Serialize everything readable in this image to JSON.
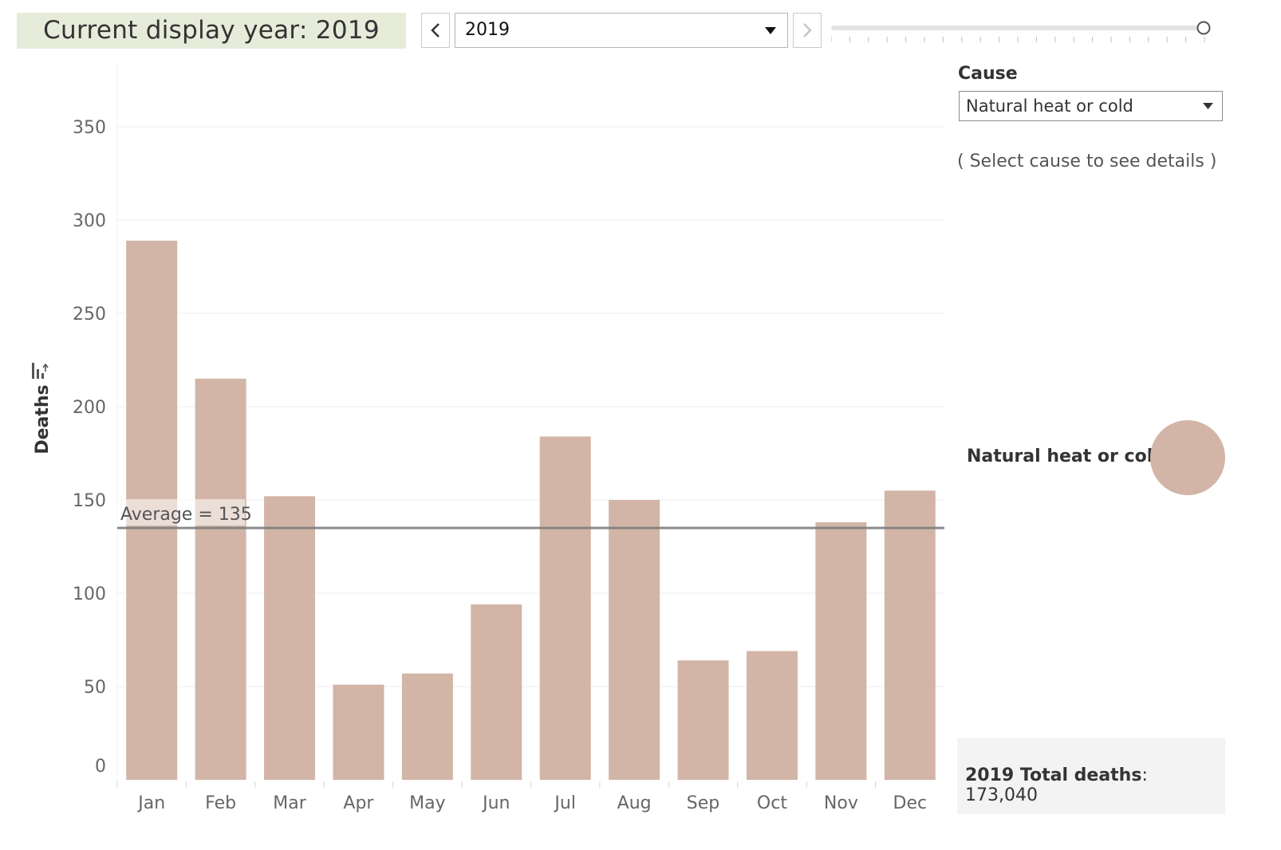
{
  "header": {
    "display_year_label": "Current display year:  2019",
    "year_select_value": "2019",
    "prev_icon": "chevron-left-icon",
    "next_icon": "chevron-right-icon",
    "slider_level": 1.0
  },
  "filter": {
    "cause_label": "Cause",
    "cause_value": "Natural heat or cold",
    "hint": "( Select cause to see details )"
  },
  "legend": {
    "label": "Natural heat or cold",
    "color": "#d2b5a7"
  },
  "totals": {
    "label": "2019 Total deaths",
    "value": ": 173,040"
  },
  "chart_data": {
    "type": "bar",
    "categories": [
      "Jan",
      "Feb",
      "Mar",
      "Apr",
      "May",
      "Jun",
      "Jul",
      "Aug",
      "Sep",
      "Oct",
      "Nov",
      "Dec"
    ],
    "values": [
      289,
      215,
      152,
      51,
      57,
      94,
      184,
      150,
      64,
      69,
      138,
      155
    ],
    "ylabel": "Deaths",
    "ylim": [
      0,
      380
    ],
    "yticks": [
      0,
      50,
      100,
      150,
      200,
      250,
      300,
      350
    ],
    "average": {
      "value": 135,
      "label": "Average = 135"
    },
    "bar_color": "#d2b5a7",
    "grid": true
  }
}
